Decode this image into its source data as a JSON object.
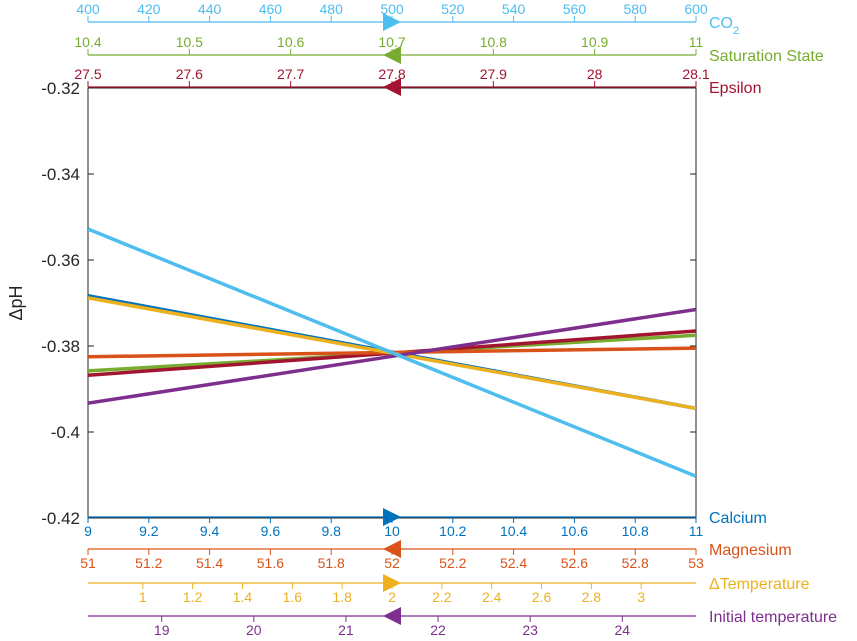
{
  "chart_data": {
    "type": "line",
    "ylabel": "ΔpH",
    "ylim": [
      -0.42,
      -0.32
    ],
    "yticks": [
      -0.42,
      -0.4,
      -0.38,
      -0.36,
      -0.34,
      -0.32
    ],
    "ytick_labels": [
      "-0.42",
      "-0.4",
      "-0.38",
      "-0.36",
      "-0.34",
      "-0.32"
    ],
    "grid": false,
    "center_point": -0.3815,
    "axes": [
      {
        "id": "co2",
        "label": "CO",
        "label_sub": "2",
        "color": "#4DBEEE",
        "range": [
          400,
          600
        ],
        "center": 500,
        "marker": "right",
        "ticks": [
          400,
          420,
          440,
          460,
          480,
          500,
          520,
          540,
          560,
          580,
          600
        ],
        "tick_labels": [
          "400",
          "420",
          "440",
          "460",
          "480",
          "500",
          "520",
          "540",
          "560",
          "580",
          "600"
        ],
        "series": {
          "x": [
            400,
            600
          ],
          "y": [
            -0.3528,
            -0.4103
          ],
          "color": "#4DBEEE"
        }
      },
      {
        "id": "saturation",
        "label": "Saturation State",
        "color": "#77AC30",
        "range": [
          10.4,
          11
        ],
        "center": 10.7,
        "marker": "left",
        "ticks": [
          10.4,
          10.5,
          10.6,
          10.7,
          10.8,
          10.9,
          11
        ],
        "tick_labels": [
          "10.4",
          "10.5",
          "10.6",
          "10.7",
          "10.8",
          "10.9",
          "11"
        ],
        "series": {
          "x": [
            10.4,
            11
          ],
          "y": [
            -0.3858,
            -0.3775
          ],
          "color": "#77AC30"
        }
      },
      {
        "id": "epsilon",
        "label": "Epsilon",
        "color": "#A2142F",
        "range": [
          27.5,
          28.1
        ],
        "center": 27.8,
        "marker": "left",
        "ticks": [
          27.5,
          27.6,
          27.7,
          27.8,
          27.9,
          28,
          28.1
        ],
        "tick_labels": [
          "27.5",
          "27.6",
          "27.7",
          "27.8",
          "27.9",
          "28",
          "28.1"
        ],
        "series": {
          "x": [
            27.5,
            28.1
          ],
          "y": [
            -0.3868,
            -0.3765
          ],
          "color": "#A2142F"
        }
      },
      {
        "id": "calcium",
        "label": "Calcium",
        "color": "#0072BD",
        "range": [
          9,
          11
        ],
        "center": 10,
        "marker": "right",
        "ticks": [
          9,
          9.2,
          9.4,
          9.6,
          9.8,
          10,
          10.2,
          10.4,
          10.6,
          10.8,
          11
        ],
        "tick_labels": [
          "9",
          "9.2",
          "9.4",
          "9.6",
          "9.8",
          "10",
          "10.2",
          "10.4",
          "10.6",
          "10.8",
          "11"
        ],
        "series": {
          "x": [
            9,
            11
          ],
          "y": [
            -0.3683,
            -0.3945
          ],
          "color": "#0072BD"
        }
      },
      {
        "id": "magnesium",
        "label": "Magnesium",
        "color": "#D95319",
        "range": [
          51,
          53
        ],
        "center": 52,
        "marker": "left",
        "ticks": [
          51,
          51.2,
          51.4,
          51.6,
          51.8,
          52,
          52.2,
          52.4,
          52.6,
          52.8,
          53
        ],
        "tick_labels": [
          "51",
          "51.2",
          "51.4",
          "51.6",
          "51.8",
          "52",
          "52.2",
          "52.4",
          "52.6",
          "52.8",
          "53"
        ],
        "series": {
          "x": [
            51,
            53
          ],
          "y": [
            -0.3825,
            -0.3805
          ],
          "color": "#D95319"
        }
      },
      {
        "id": "dtemp",
        "label": "ΔTemperature",
        "color": "#EDB120",
        "range": [
          0.78,
          3.22
        ],
        "center": 2,
        "marker": "right",
        "ticks": [
          1,
          1.2,
          1.4,
          1.6,
          1.8,
          2,
          2.2,
          2.4,
          2.6,
          2.8,
          3
        ],
        "tick_labels": [
          "1",
          "1.2",
          "1.4",
          "1.6",
          "1.8",
          "2",
          "2.2",
          "2.4",
          "2.6",
          "2.8",
          "3"
        ],
        "series": {
          "x": [
            0.78,
            3.22
          ],
          "y": [
            -0.3688,
            -0.3945
          ],
          "color": "#EDB120"
        }
      },
      {
        "id": "inittemp",
        "label": "Initial temperature",
        "color": "#7E2F8E",
        "range": [
          18.2,
          24.8
        ],
        "center": 21.5,
        "marker": "left",
        "ticks": [
          19,
          20,
          21,
          22,
          23,
          24
        ],
        "tick_labels": [
          "19",
          "20",
          "21",
          "22",
          "23",
          "24"
        ],
        "series": {
          "x": [
            18.2,
            24.8
          ],
          "y": [
            -0.3933,
            -0.3715
          ],
          "color": "#7E2F8E"
        }
      }
    ]
  }
}
